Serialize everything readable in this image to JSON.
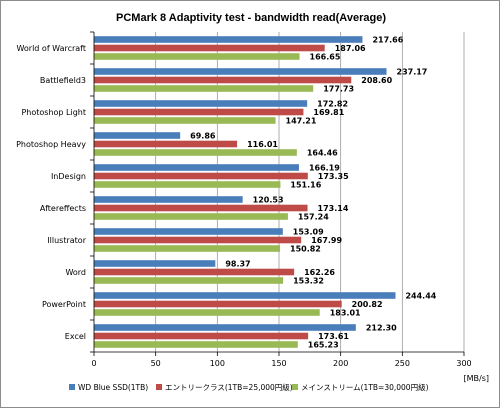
{
  "colors": {
    "ssd": "#4a7ebb",
    "entry": "#be4b48",
    "mainstream": "#98b954"
  },
  "chart_data": {
    "type": "bar",
    "orientation": "horizontal",
    "title": "PCMark 8 Adaptivity test - bandwidth read(Average)",
    "unit": "[MB/s]",
    "categories": [
      "World of Warcraft",
      "Battlefield3",
      "Photoshop Light",
      "Photoshop Heavy",
      "InDesign",
      "Aftereffects",
      "Illustrator",
      "Word",
      "PowerPoint",
      "Excel"
    ],
    "series": [
      {
        "name": "WD Blue SSD(1TB)",
        "values": [
          217.66,
          237.17,
          172.82,
          69.86,
          166.19,
          120.53,
          153.09,
          98.37,
          244.44,
          212.3
        ],
        "labels": [
          "217.66",
          "237.17",
          "172.82",
          "69.86",
          "166.19",
          "120.53",
          "153.09",
          "98.37",
          "244.44",
          "212.30"
        ]
      },
      {
        "name": "エントリークラス(1TB=25,000円級)",
        "values": [
          187.06,
          208.6,
          169.81,
          116.01,
          173.35,
          173.14,
          167.99,
          162.26,
          200.82,
          173.61
        ],
        "labels": [
          "187.06",
          "208.60",
          "169.81",
          "116.01",
          "173.35",
          "173.14",
          "167.99",
          "162.26",
          "200.82",
          "173.61"
        ]
      },
      {
        "name": "メインストリーム(1TB=30,000円級)",
        "values": [
          166.65,
          177.73,
          147.21,
          164.46,
          151.16,
          157.24,
          150.82,
          153.32,
          183.01,
          165.23
        ],
        "labels": [
          "166.65",
          "177.73",
          "147.21",
          "164.46",
          "151.16",
          "157.24",
          "150.82",
          "153.32",
          "183.01",
          "165.23"
        ]
      }
    ],
    "xlim": [
      0,
      300
    ],
    "xticks": [
      "0",
      "50",
      "100",
      "150",
      "200",
      "250",
      "300"
    ],
    "grid": true,
    "legend_position": "bottom"
  }
}
